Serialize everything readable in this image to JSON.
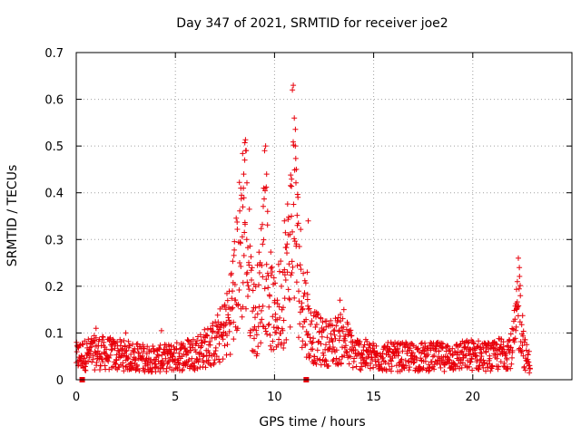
{
  "chart_data": {
    "type": "scatter",
    "title": "Day 347 of 2021, SRMTID for receiver joe2",
    "xlabel": "GPS time / hours",
    "ylabel": "SRMTID / TECUs",
    "xlim": [
      0,
      25
    ],
    "ylim": [
      0,
      0.7
    ],
    "x_ticks": [
      0,
      5,
      10,
      15,
      20
    ],
    "y_ticks": [
      0,
      0.1,
      0.2,
      0.3,
      0.4,
      0.5,
      0.6,
      0.7
    ],
    "x_tick_labels": [
      "0",
      "5",
      "10",
      "15",
      "20"
    ],
    "y_tick_labels": [
      "0",
      "0.1",
      "0.2",
      "0.3",
      "0.4",
      "0.5",
      "0.6",
      "0.7"
    ],
    "grid": true,
    "marker": "plus",
    "series_color": "#e8000b",
    "baseline_markers": [
      {
        "x": 0.3,
        "y": 0.0
      },
      {
        "x": 11.6,
        "y": 0.0
      }
    ],
    "envelope": [
      [
        0.0,
        0.05
      ],
      [
        0.5,
        0.055
      ],
      [
        1.0,
        0.06
      ],
      [
        2.0,
        0.055
      ],
      [
        3.0,
        0.05
      ],
      [
        4.0,
        0.045
      ],
      [
        5.0,
        0.05
      ],
      [
        6.0,
        0.06
      ],
      [
        7.0,
        0.08
      ],
      [
        7.6,
        0.12
      ],
      [
        8.0,
        0.2
      ],
      [
        8.3,
        0.3
      ],
      [
        8.5,
        0.38
      ],
      [
        8.7,
        0.25
      ],
      [
        9.0,
        0.12
      ],
      [
        9.3,
        0.2
      ],
      [
        9.5,
        0.32
      ],
      [
        9.7,
        0.2
      ],
      [
        10.0,
        0.13
      ],
      [
        10.5,
        0.2
      ],
      [
        10.8,
        0.3
      ],
      [
        11.0,
        0.4
      ],
      [
        11.2,
        0.25
      ],
      [
        11.5,
        0.16
      ],
      [
        11.8,
        0.1
      ],
      [
        12.5,
        0.08
      ],
      [
        13.5,
        0.09
      ],
      [
        14.0,
        0.06
      ],
      [
        15.0,
        0.05
      ],
      [
        17.0,
        0.05
      ],
      [
        19.0,
        0.05
      ],
      [
        20.0,
        0.055
      ],
      [
        21.0,
        0.05
      ],
      [
        22.0,
        0.07
      ],
      [
        22.2,
        0.12
      ],
      [
        22.4,
        0.16
      ],
      [
        22.6,
        0.06
      ],
      [
        22.8,
        0.04
      ]
    ],
    "peak_points": [
      {
        "x": 8.4,
        "y": 0.37
      },
      {
        "x": 8.45,
        "y": 0.44
      },
      {
        "x": 8.5,
        "y": 0.47
      },
      {
        "x": 8.55,
        "y": 0.49
      },
      {
        "x": 8.3,
        "y": 0.41
      },
      {
        "x": 8.6,
        "y": 0.3
      },
      {
        "x": 9.5,
        "y": 0.49
      },
      {
        "x": 9.55,
        "y": 0.5
      },
      {
        "x": 9.6,
        "y": 0.44
      },
      {
        "x": 9.45,
        "y": 0.41
      },
      {
        "x": 9.65,
        "y": 0.36
      },
      {
        "x": 9.4,
        "y": 0.29
      },
      {
        "x": 10.9,
        "y": 0.62
      },
      {
        "x": 10.95,
        "y": 0.63
      },
      {
        "x": 11.0,
        "y": 0.56
      },
      {
        "x": 11.05,
        "y": 0.5
      },
      {
        "x": 11.1,
        "y": 0.45
      },
      {
        "x": 10.85,
        "y": 0.35
      },
      {
        "x": 11.15,
        "y": 0.33
      },
      {
        "x": 11.7,
        "y": 0.34
      },
      {
        "x": 11.65,
        "y": 0.23
      },
      {
        "x": 10.5,
        "y": 0.34
      },
      {
        "x": 10.7,
        "y": 0.31
      },
      {
        "x": 13.3,
        "y": 0.17
      },
      {
        "x": 13.5,
        "y": 0.15
      },
      {
        "x": 22.3,
        "y": 0.26
      },
      {
        "x": 22.35,
        "y": 0.24
      },
      {
        "x": 22.25,
        "y": 0.21
      },
      {
        "x": 22.4,
        "y": 0.18
      },
      {
        "x": 22.2,
        "y": 0.15
      },
      {
        "x": 2.5,
        "y": 0.1
      },
      {
        "x": 4.3,
        "y": 0.105
      },
      {
        "x": 1.0,
        "y": 0.11
      }
    ],
    "x_range_data": [
      0.0,
      22.9
    ]
  }
}
